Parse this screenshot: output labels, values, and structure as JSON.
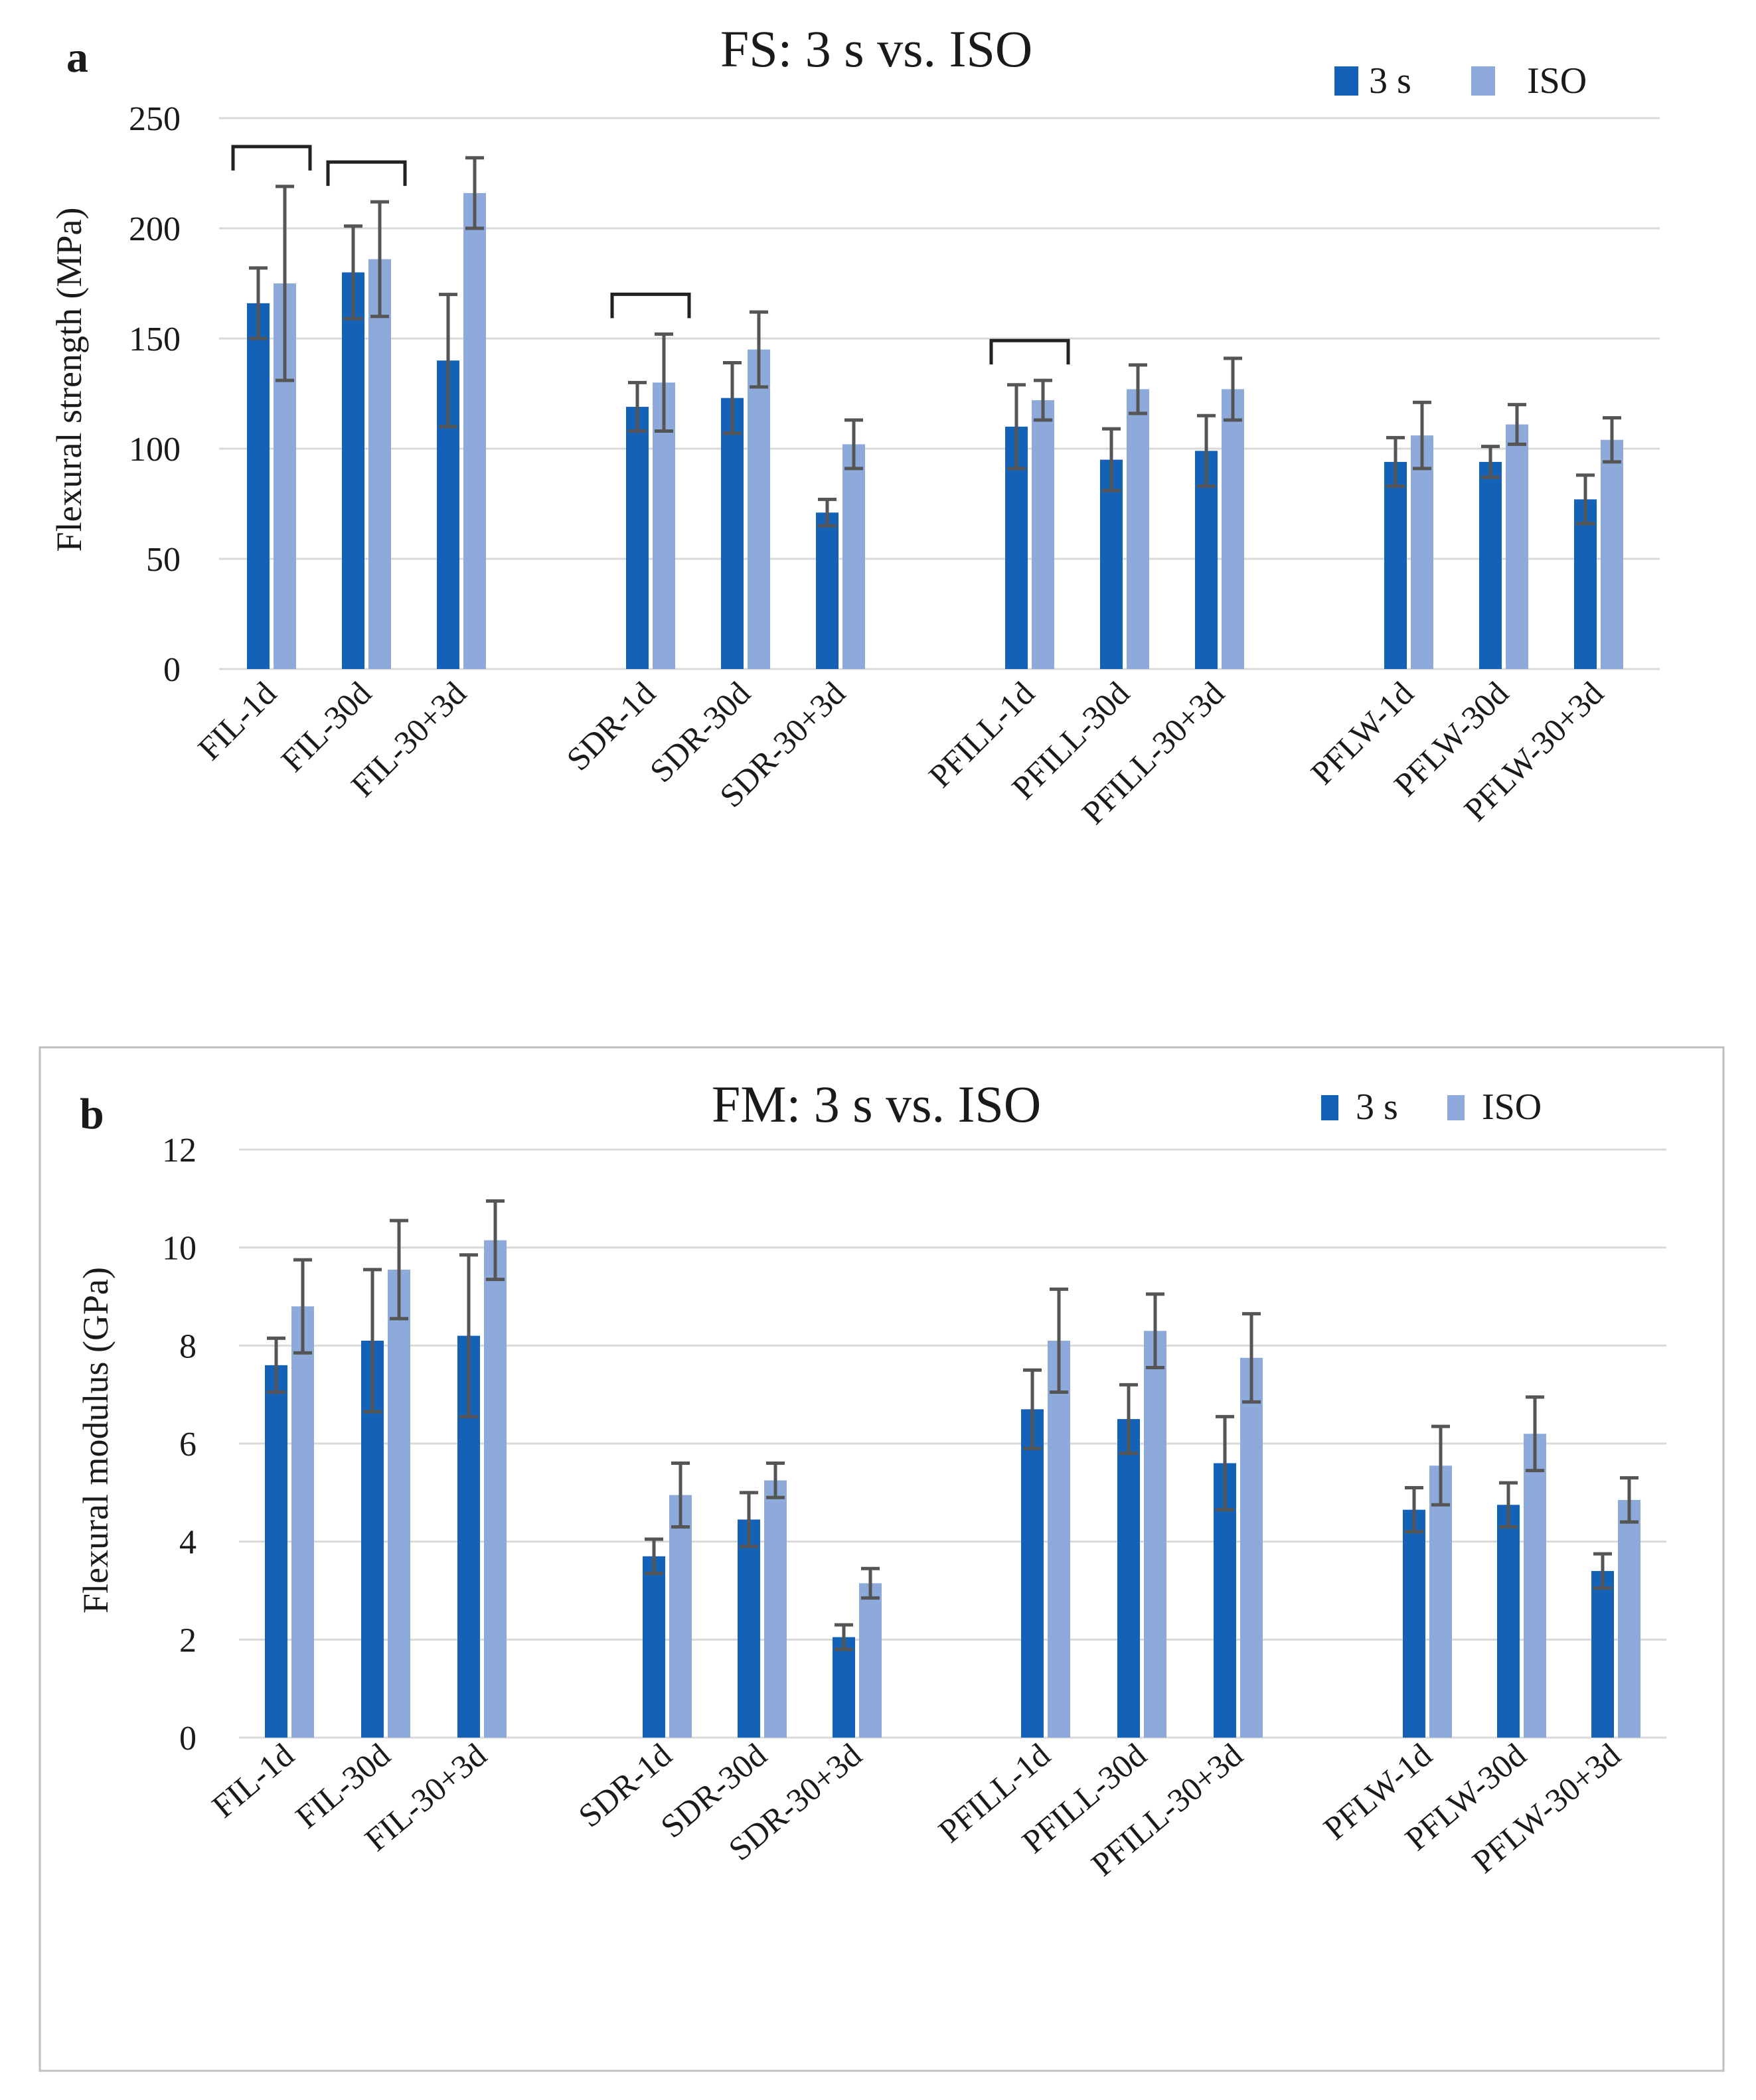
{
  "colors": {
    "s3": "#1462b8",
    "iso": "#8eaadb",
    "error": "#555555",
    "grid": "#d9d9d9",
    "frame": "#bfbfbf"
  },
  "chart_data": [
    {
      "type": "bar",
      "panel": "a",
      "title": "FS: 3 s vs. ISO",
      "xlabel": "",
      "ylabel": "Flexural strength (MPa)",
      "ylim": [
        0,
        250
      ],
      "yticks": [
        0,
        50,
        100,
        150,
        200,
        250
      ],
      "grid": true,
      "legend": "top-right",
      "categories": [
        "FIL-1d",
        "FIL-30d",
        "FIL-30+3d",
        "SDR-1d",
        "SDR-30d",
        "SDR-30+3d",
        "PFILL-1d",
        "PFILL-30d",
        "PFILL-30+3d",
        "PFLW-1d",
        "PFLW-30d",
        "PFLW-30+3d"
      ],
      "series": [
        {
          "name": "3 s",
          "values": [
            166,
            180,
            140,
            119,
            123,
            71,
            110,
            95,
            99,
            94,
            94,
            77
          ],
          "errors": [
            16,
            21,
            30,
            11,
            16,
            6,
            19,
            14,
            16,
            11,
            7,
            11
          ]
        },
        {
          "name": "ISO",
          "values": [
            175,
            186,
            216,
            130,
            145,
            102,
            122,
            127,
            127,
            106,
            111,
            104
          ],
          "errors": [
            44,
            26,
            16,
            22,
            17,
            11,
            9,
            11,
            14,
            15,
            9,
            10
          ]
        }
      ],
      "brackets": [
        "FIL-1d",
        "FIL-30d",
        "SDR-1d",
        "PFILL-1d"
      ]
    },
    {
      "type": "bar",
      "panel": "b",
      "title": "FM: 3 s vs. ISO",
      "xlabel": "",
      "ylabel": "Flexural modulus (GPa)",
      "ylim": [
        0,
        12
      ],
      "yticks": [
        0,
        2,
        4,
        6,
        8,
        10,
        12
      ],
      "grid": true,
      "legend": "top-right",
      "categories": [
        "FIL-1d",
        "FIL-30d",
        "FIL-30+3d",
        "SDR-1d",
        "SDR-30d",
        "SDR-30+3d",
        "PFILL-1d",
        "PFILL-30d",
        "PFILL-30+3d",
        "PFLW-1d",
        "PFLW-30d",
        "PFLW-30+3d"
      ],
      "series": [
        {
          "name": "3 s",
          "values": [
            7.6,
            8.1,
            8.2,
            3.7,
            4.45,
            2.05,
            6.7,
            6.5,
            5.6,
            4.65,
            4.75,
            3.4
          ],
          "errors": [
            0.55,
            1.45,
            1.65,
            0.35,
            0.55,
            0.25,
            0.8,
            0.7,
            0.95,
            0.45,
            0.45,
            0.35
          ]
        },
        {
          "name": "ISO",
          "values": [
            8.8,
            9.55,
            10.15,
            4.95,
            5.25,
            3.15,
            8.1,
            8.3,
            7.75,
            5.55,
            6.2,
            4.85
          ],
          "errors": [
            0.95,
            1.0,
            0.8,
            0.65,
            0.35,
            0.3,
            1.05,
            0.75,
            0.9,
            0.8,
            0.75,
            0.45
          ]
        }
      ]
    }
  ]
}
